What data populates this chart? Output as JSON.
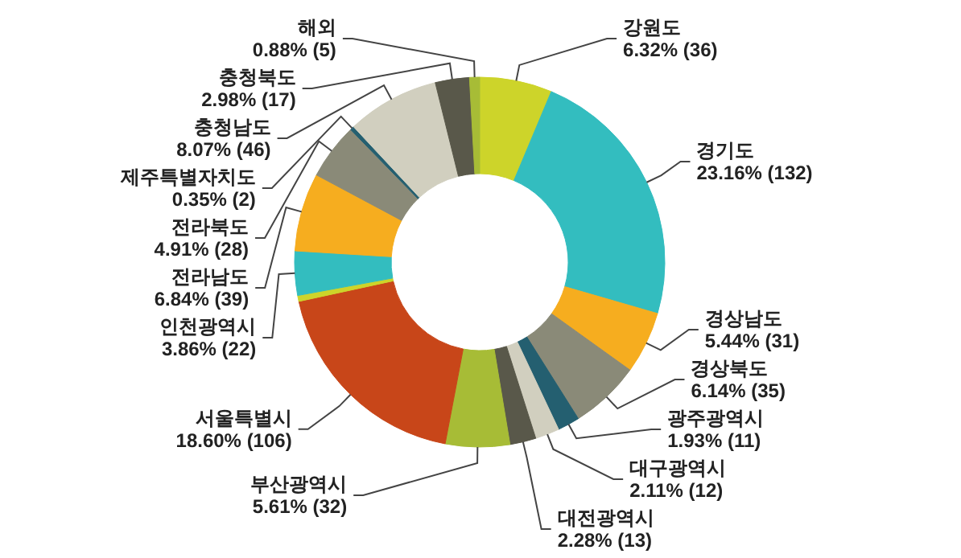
{
  "chart_data": {
    "type": "donut",
    "categories": [
      "강원도",
      "경기도",
      "경상남도",
      "경상북도",
      "광주광역시",
      "대구광역시",
      "대전광역시",
      "부산광역시",
      "서울특별시",
      null,
      "인천광역시",
      "전라남도",
      "전라북도",
      "제주특별자치도",
      "충청남도",
      "충청북도",
      "해외"
    ],
    "values": [
      6.32,
      23.16,
      5.44,
      6.14,
      1.93,
      2.11,
      2.28,
      5.61,
      18.6,
      0.52,
      3.86,
      6.84,
      4.91,
      0.35,
      8.07,
      2.98,
      0.88
    ],
    "value_labels": [
      "6.32% (36)",
      "23.16% (132)",
      "5.44% (31)",
      "6.14% (35)",
      "1.93% (11)",
      "2.11% (12)",
      "2.28% (13)",
      "5.61% (32)",
      "18.60% (106)",
      null,
      "3.86% (22)",
      "6.84% (39)",
      "4.91% (28)",
      "0.35% (2)",
      "8.07% (46)",
      "2.98% (17)",
      "0.88% (5)"
    ],
    "colors": [
      "#cdd42a",
      "#33bdbf",
      "#f6ad1f",
      "#8a8a78",
      "#245f70",
      "#d1cfbf",
      "#59584a",
      "#a7bc36",
      "#c84619",
      "#cdd42a",
      "#33bdbf",
      "#f6ad1f",
      "#8a8a78",
      "#245f70",
      "#d1cfbf",
      "#59584a",
      "#a7bc36"
    ]
  }
}
